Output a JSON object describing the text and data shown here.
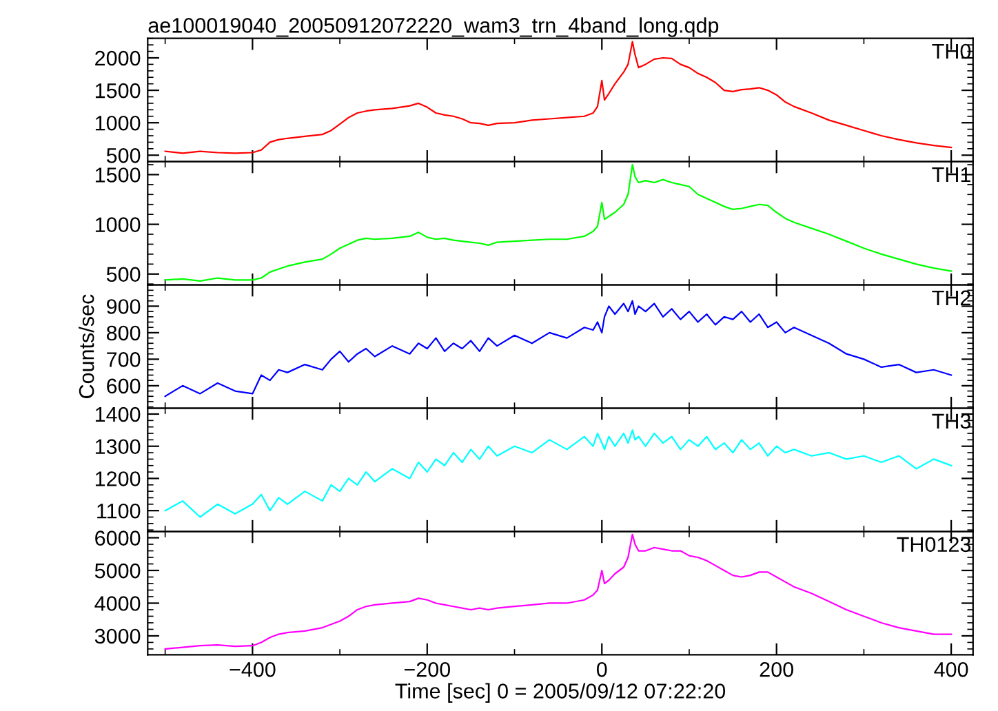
{
  "chart_data": [
    {
      "type": "line",
      "title": "ae100019040_20050912072220_wam3_trn_4band_long.qdp",
      "tick_labels": "y",
      "xlim": [
        -520,
        425
      ],
      "xticks": [
        -400,
        -200,
        0,
        200,
        400
      ],
      "ylim": [
        400,
        2300
      ],
      "yticks": [
        500,
        1000,
        1500,
        2000
      ],
      "x": [
        -500,
        -480,
        -460,
        -440,
        -420,
        -400,
        -390,
        -380,
        -370,
        -360,
        -340,
        -320,
        -310,
        -300,
        -290,
        -280,
        -270,
        -260,
        -240,
        -220,
        -210,
        -200,
        -190,
        -180,
        -170,
        -160,
        -150,
        -140,
        -130,
        -120,
        -100,
        -80,
        -60,
        -40,
        -20,
        -10,
        -5,
        0,
        3,
        8,
        15,
        25,
        30,
        35,
        38,
        42,
        50,
        60,
        70,
        80,
        90,
        100,
        110,
        120,
        130,
        140,
        150,
        160,
        170,
        180,
        190,
        200,
        210,
        220,
        240,
        260,
        280,
        300,
        320,
        340,
        360,
        380,
        400
      ],
      "series": [
        {
          "name": "TH0",
          "color": "#ff0000",
          "values": [
            560,
            530,
            560,
            540,
            530,
            540,
            580,
            700,
            740,
            760,
            790,
            820,
            880,
            980,
            1080,
            1150,
            1180,
            1200,
            1220,
            1260,
            1300,
            1240,
            1150,
            1120,
            1100,
            1060,
            1000,
            990,
            960,
            990,
            1000,
            1040,
            1060,
            1080,
            1100,
            1150,
            1250,
            1650,
            1350,
            1450,
            1600,
            1780,
            1900,
            2250,
            2050,
            1850,
            1900,
            1980,
            2000,
            1990,
            1900,
            1850,
            1760,
            1700,
            1620,
            1500,
            1480,
            1510,
            1520,
            1540,
            1500,
            1430,
            1320,
            1250,
            1150,
            1040,
            960,
            880,
            800,
            740,
            690,
            650,
            620
          ]
        }
      ]
    },
    {
      "type": "line",
      "tick_labels": "y",
      "xlim": [
        -520,
        425
      ],
      "xticks": [
        -400,
        -200,
        0,
        200,
        400
      ],
      "ylim": [
        390,
        1630
      ],
      "yticks": [
        500,
        1000,
        1500
      ],
      "x": [
        -500,
        -480,
        -460,
        -440,
        -420,
        -400,
        -390,
        -380,
        -370,
        -360,
        -340,
        -320,
        -310,
        -300,
        -290,
        -280,
        -270,
        -260,
        -240,
        -220,
        -210,
        -200,
        -190,
        -180,
        -170,
        -160,
        -150,
        -140,
        -130,
        -120,
        -100,
        -80,
        -60,
        -40,
        -20,
        -10,
        -5,
        0,
        3,
        8,
        15,
        25,
        30,
        35,
        38,
        42,
        50,
        60,
        70,
        80,
        90,
        100,
        110,
        120,
        130,
        140,
        150,
        160,
        170,
        180,
        190,
        200,
        210,
        220,
        240,
        260,
        280,
        300,
        320,
        340,
        360,
        380,
        400
      ],
      "series": [
        {
          "name": "TH1",
          "color": "#00ff00",
          "values": [
            440,
            450,
            430,
            460,
            440,
            440,
            460,
            520,
            550,
            580,
            620,
            650,
            700,
            760,
            800,
            840,
            860,
            850,
            860,
            880,
            920,
            870,
            850,
            860,
            840,
            830,
            820,
            810,
            790,
            820,
            830,
            840,
            850,
            850,
            880,
            930,
            980,
            1220,
            1050,
            1080,
            1120,
            1200,
            1300,
            1600,
            1480,
            1420,
            1440,
            1420,
            1450,
            1420,
            1400,
            1380,
            1300,
            1260,
            1220,
            1180,
            1150,
            1160,
            1180,
            1200,
            1190,
            1120,
            1060,
            1020,
            960,
            900,
            830,
            760,
            700,
            650,
            600,
            560,
            530
          ]
        }
      ]
    },
    {
      "type": "line",
      "tick_labels": "y",
      "ylabel": "Counts/sec",
      "xlim": [
        -520,
        425
      ],
      "xticks": [
        -400,
        -200,
        0,
        200,
        400
      ],
      "ylim": [
        515,
        980
      ],
      "yticks": [
        600,
        700,
        800,
        900
      ],
      "x": [
        -500,
        -480,
        -460,
        -440,
        -420,
        -400,
        -390,
        -380,
        -370,
        -360,
        -340,
        -320,
        -310,
        -300,
        -290,
        -280,
        -270,
        -260,
        -240,
        -220,
        -210,
        -200,
        -190,
        -180,
        -170,
        -160,
        -150,
        -140,
        -130,
        -120,
        -100,
        -80,
        -60,
        -40,
        -20,
        -10,
        -5,
        0,
        3,
        8,
        15,
        25,
        30,
        35,
        38,
        42,
        50,
        60,
        70,
        80,
        90,
        100,
        110,
        120,
        130,
        140,
        150,
        160,
        170,
        180,
        190,
        200,
        210,
        220,
        240,
        260,
        280,
        300,
        320,
        340,
        360,
        380,
        400
      ],
      "series": [
        {
          "name": "TH2",
          "color": "#0000ff",
          "values": [
            560,
            600,
            570,
            610,
            580,
            570,
            640,
            620,
            660,
            650,
            680,
            660,
            700,
            730,
            690,
            720,
            740,
            710,
            750,
            720,
            760,
            740,
            780,
            730,
            760,
            740,
            770,
            730,
            780,
            750,
            790,
            760,
            800,
            780,
            820,
            810,
            840,
            800,
            860,
            900,
            870,
            910,
            880,
            920,
            870,
            900,
            880,
            910,
            860,
            890,
            850,
            880,
            840,
            870,
            830,
            860,
            850,
            880,
            840,
            870,
            820,
            840,
            800,
            820,
            790,
            760,
            720,
            700,
            670,
            680,
            650,
            660,
            640
          ]
        }
      ]
    },
    {
      "type": "line",
      "tick_labels": "y",
      "xlim": [
        -520,
        425
      ],
      "xticks": [
        -400,
        -200,
        0,
        200,
        400
      ],
      "ylim": [
        1035,
        1418
      ],
      "yticks": [
        1100,
        1200,
        1300,
        1400
      ],
      "x": [
        -500,
        -480,
        -460,
        -440,
        -420,
        -400,
        -390,
        -380,
        -370,
        -360,
        -340,
        -320,
        -310,
        -300,
        -290,
        -280,
        -270,
        -260,
        -240,
        -220,
        -210,
        -200,
        -190,
        -180,
        -170,
        -160,
        -150,
        -140,
        -130,
        -120,
        -100,
        -80,
        -60,
        -40,
        -20,
        -10,
        -5,
        0,
        3,
        8,
        15,
        25,
        30,
        35,
        38,
        42,
        50,
        60,
        70,
        80,
        90,
        100,
        110,
        120,
        130,
        140,
        150,
        160,
        170,
        180,
        190,
        200,
        210,
        220,
        240,
        260,
        280,
        300,
        320,
        340,
        360,
        380,
        400
      ],
      "series": [
        {
          "name": "TH3",
          "color": "#00ffff",
          "values": [
            1100,
            1130,
            1080,
            1120,
            1090,
            1120,
            1150,
            1100,
            1140,
            1120,
            1160,
            1130,
            1180,
            1160,
            1200,
            1180,
            1220,
            1190,
            1230,
            1200,
            1250,
            1220,
            1260,
            1240,
            1280,
            1250,
            1290,
            1260,
            1300,
            1270,
            1300,
            1280,
            1320,
            1290,
            1330,
            1300,
            1340,
            1310,
            1290,
            1330,
            1300,
            1340,
            1310,
            1350,
            1320,
            1330,
            1300,
            1340,
            1310,
            1330,
            1290,
            1320,
            1300,
            1330,
            1290,
            1310,
            1280,
            1320,
            1290,
            1310,
            1270,
            1300,
            1280,
            1290,
            1270,
            1280,
            1260,
            1270,
            1250,
            1270,
            1230,
            1260,
            1240
          ]
        }
      ]
    },
    {
      "type": "line",
      "xlabel": "Time [sec] 0 = 2005/09/12 07:22:20",
      "xlim": [
        -520,
        425
      ],
      "xticks": [
        -400,
        -200,
        0,
        200,
        400
      ],
      "ylim": [
        2420,
        6190
      ],
      "yticks": [
        3000,
        4000,
        5000,
        6000
      ],
      "x": [
        -500,
        -480,
        -460,
        -440,
        -420,
        -400,
        -390,
        -380,
        -370,
        -360,
        -340,
        -320,
        -310,
        -300,
        -290,
        -280,
        -270,
        -260,
        -240,
        -220,
        -210,
        -200,
        -190,
        -180,
        -170,
        -160,
        -150,
        -140,
        -130,
        -120,
        -100,
        -80,
        -60,
        -40,
        -20,
        -10,
        -5,
        0,
        3,
        8,
        15,
        25,
        30,
        35,
        38,
        42,
        50,
        60,
        70,
        80,
        90,
        100,
        110,
        120,
        130,
        140,
        150,
        160,
        170,
        180,
        190,
        200,
        210,
        220,
        240,
        260,
        280,
        300,
        320,
        340,
        360,
        380,
        400
      ],
      "series": [
        {
          "name": "TH0123",
          "color": "#ff00ff",
          "values": [
            2600,
            2650,
            2700,
            2720,
            2680,
            2700,
            2800,
            2950,
            3050,
            3100,
            3150,
            3250,
            3350,
            3450,
            3600,
            3800,
            3900,
            3950,
            4000,
            4050,
            4150,
            4100,
            4000,
            3950,
            3900,
            3850,
            3800,
            3850,
            3800,
            3850,
            3900,
            3950,
            4000,
            4000,
            4100,
            4250,
            4400,
            5000,
            4600,
            4700,
            4900,
            5100,
            5400,
            6100,
            5800,
            5600,
            5600,
            5700,
            5650,
            5600,
            5600,
            5450,
            5400,
            5300,
            5150,
            5000,
            4850,
            4800,
            4850,
            4950,
            4950,
            4800,
            4650,
            4500,
            4300,
            4050,
            3800,
            3600,
            3400,
            3250,
            3150,
            3050,
            3050
          ]
        }
      ]
    }
  ]
}
